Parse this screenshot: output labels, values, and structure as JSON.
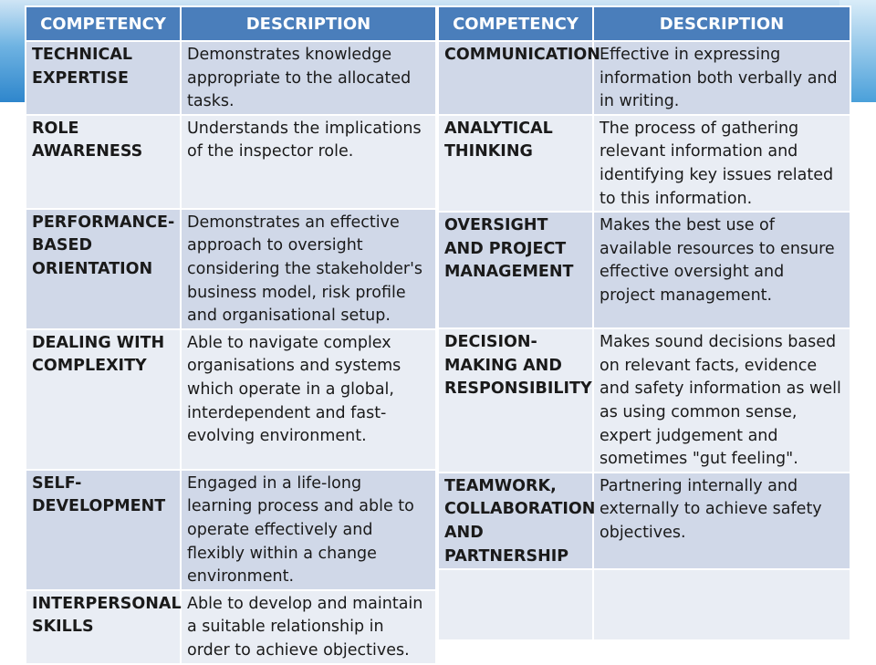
{
  "headers": {
    "competency": "COMPETENCY",
    "description": "DESCRIPTION"
  },
  "left_rows": [
    {
      "competency": "TECHNICAL EXPERTISE",
      "description": "Demonstrates knowledge appropriate to the allocated tasks."
    },
    {
      "competency": "ROLE AWARENESS",
      "description": "Understands the implications of the inspector role."
    },
    {
      "competency": "PERFORMANCE-BASED ORIENTATION",
      "description": "Demonstrates an effective approach to oversight considering the stakeholder's business model, risk profile and organisational setup."
    },
    {
      "competency": "DEALING WITH COMPLEXITY",
      "description": "Able to navigate complex organisations and systems which operate in a global, interdependent and fast-evolving environment."
    },
    {
      "competency": "SELF-DEVELOPMENT",
      "description": "Engaged in a life-long learning process and able to operate effectively and flexibly within a change environment."
    },
    {
      "competency": "INTERPERSONAL SKILLS",
      "description": "Able to develop and maintain a suitable relationship in order to achieve objectives."
    }
  ],
  "right_rows": [
    {
      "competency": "COMMUNICATION",
      "description": "Effective in expressing information both verbally and in writing."
    },
    {
      "competency": "ANALYTICAL THINKING",
      "description": "The process of gathering relevant information and identifying key issues related to this information."
    },
    {
      "competency": "OVERSIGHT AND PROJECT MANAGEMENT",
      "description": "Makes the best use of available resources to ensure effective oversight and project management."
    },
    {
      "competency": "DECISION-MAKING AND RESPONSIBILITY",
      "description": "Makes sound decisions based on relevant facts, evidence and safety information as well as using common sense, expert judgement and sometimes \"gut feeling\"."
    },
    {
      "competency": "TEAMWORK, COLLABORATION AND PARTNERSHIP",
      "description": "Partnering internally and externally to achieve safety objectives."
    },
    {
      "competency": "",
      "description": ""
    }
  ],
  "colors": {
    "header": "#4a7ebb",
    "row_dark": "#d0d8e8",
    "row_light": "#e9edf4",
    "band": "#2e86cc"
  }
}
